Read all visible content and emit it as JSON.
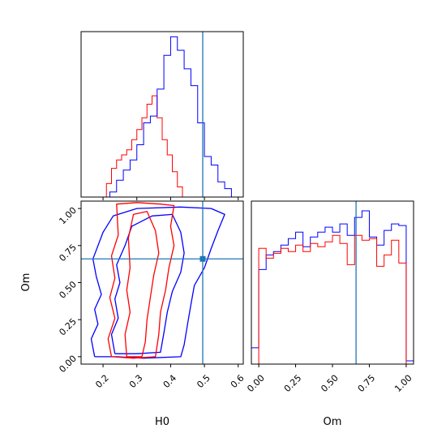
{
  "chart_data": {
    "type": "corner",
    "variables": [
      "H0",
      "Om"
    ],
    "truth": {
      "H0": 0.495,
      "Om": 0.66
    },
    "colors": {
      "red": "#ff0000",
      "blue": "#0000ff",
      "truth": "#1f77b4"
    },
    "grid": false,
    "legend": "none",
    "panels": [
      {
        "id": "h0-marginal",
        "type": "histogram-step",
        "xlim": [
          0.135,
          0.615
        ],
        "x_ticks": [
          0.2,
          0.3,
          0.4,
          0.5,
          0.6
        ],
        "y_ticks_labeled": false,
        "series": [
          {
            "color": "#ff0000",
            "bin_edges": [
              0.195,
              0.21,
              0.225,
              0.24,
              0.255,
              0.27,
              0.285,
              0.3,
              0.315,
              0.33,
              0.345,
              0.36,
              0.375,
              0.39,
              0.405,
              0.42,
              0.435,
              0.45
            ],
            "counts": [
              0.0,
              0.08,
              0.17,
              0.22,
              0.25,
              0.28,
              0.34,
              0.4,
              0.47,
              0.55,
              0.6,
              0.47,
              0.34,
              0.25,
              0.15,
              0.06,
              0.0
            ]
          },
          {
            "color": "#0000ff",
            "bin_edges": [
              0.22,
              0.24,
              0.26,
              0.28,
              0.3,
              0.32,
              0.34,
              0.36,
              0.38,
              0.4,
              0.42,
              0.44,
              0.46,
              0.48,
              0.5,
              0.52,
              0.54,
              0.56,
              0.58,
              0.6
            ],
            "counts": [
              0.03,
              0.1,
              0.16,
              0.22,
              0.31,
              0.44,
              0.48,
              0.64,
              0.84,
              0.95,
              0.87,
              0.76,
              0.66,
              0.44,
              0.24,
              0.19,
              0.09,
              0.05,
              0.0
            ]
          }
        ]
      },
      {
        "id": "h0-om-contours",
        "type": "contour",
        "xlabel": "H0",
        "ylabel": "Om",
        "xlim": [
          0.135,
          0.615
        ],
        "ylim": [
          -0.05,
          1.05
        ],
        "x_ticks": [
          0.2,
          0.3,
          0.4,
          0.5,
          0.6
        ],
        "y_ticks": [
          0.0,
          0.25,
          0.5,
          0.75,
          1.0
        ],
        "series": [
          {
            "color": "#0000ff",
            "contours": [
              [
                [
                  0.175,
                  0.0
                ],
                [
                  0.165,
                  0.12
                ],
                [
                  0.185,
                  0.22
                ],
                [
                  0.175,
                  0.32
                ],
                [
                  0.195,
                  0.42
                ],
                [
                  0.18,
                  0.54
                ],
                [
                  0.17,
                  0.66
                ],
                [
                  0.18,
                  0.72
                ],
                [
                  0.2,
                  0.84
                ],
                [
                  0.23,
                  0.95
                ],
                [
                  0.3,
                  1.0
                ],
                [
                  0.43,
                  1.01
                ],
                [
                  0.52,
                  1.0
                ],
                [
                  0.56,
                  0.96
                ],
                [
                  0.54,
                  0.85
                ],
                [
                  0.52,
                  0.73
                ],
                [
                  0.5,
                  0.6
                ],
                [
                  0.47,
                  0.48
                ],
                [
                  0.46,
                  0.35
                ],
                [
                  0.45,
                  0.22
                ],
                [
                  0.44,
                  0.08
                ],
                [
                  0.43,
                  0.0
                ],
                [
                  0.32,
                  -0.01
                ],
                [
                  0.24,
                  0.0
                ],
                [
                  0.175,
                  0.0
                ]
              ],
              [
                [
                  0.235,
                  0.02
                ],
                [
                  0.225,
                  0.15
                ],
                [
                  0.245,
                  0.26
                ],
                [
                  0.235,
                  0.39
                ],
                [
                  0.25,
                  0.5
                ],
                [
                  0.24,
                  0.62
                ],
                [
                  0.265,
                  0.75
                ],
                [
                  0.285,
                  0.88
                ],
                [
                  0.345,
                  0.95
                ],
                [
                  0.405,
                  0.96
                ],
                [
                  0.43,
                  0.84
                ],
                [
                  0.44,
                  0.7
                ],
                [
                  0.43,
                  0.57
                ],
                [
                  0.405,
                  0.44
                ],
                [
                  0.39,
                  0.3
                ],
                [
                  0.38,
                  0.16
                ],
                [
                  0.37,
                  0.03
                ],
                [
                  0.3,
                  0.02
                ],
                [
                  0.235,
                  0.02
                ]
              ]
            ]
          },
          {
            "color": "#ff0000",
            "contours": [
              [
                [
                  0.225,
                  0.0
                ],
                [
                  0.215,
                  0.12
                ],
                [
                  0.235,
                  0.26
                ],
                [
                  0.22,
                  0.4
                ],
                [
                  0.235,
                  0.53
                ],
                [
                  0.225,
                  0.68
                ],
                [
                  0.245,
                  0.82
                ],
                [
                  0.24,
                  1.03
                ],
                [
                  0.3,
                  1.04
                ],
                [
                  0.37,
                  1.03
                ],
                [
                  0.41,
                  1.02
                ],
                [
                  0.4,
                  0.88
                ],
                [
                  0.41,
                  0.75
                ],
                [
                  0.395,
                  0.6
                ],
                [
                  0.385,
                  0.45
                ],
                [
                  0.37,
                  0.3
                ],
                [
                  0.365,
                  0.15
                ],
                [
                  0.355,
                  0.0
                ],
                [
                  0.29,
                  -0.01
                ],
                [
                  0.225,
                  0.0
                ]
              ],
              [
                [
                  0.27,
                  0.0
                ],
                [
                  0.265,
                  0.15
                ],
                [
                  0.28,
                  0.3
                ],
                [
                  0.27,
                  0.45
                ],
                [
                  0.28,
                  0.6
                ],
                [
                  0.275,
                  0.8
                ],
                [
                  0.29,
                  0.96
                ],
                [
                  0.33,
                  0.98
                ],
                [
                  0.355,
                  0.85
                ],
                [
                  0.365,
                  0.7
                ],
                [
                  0.35,
                  0.55
                ],
                [
                  0.34,
                  0.4
                ],
                [
                  0.33,
                  0.25
                ],
                [
                  0.325,
                  0.1
                ],
                [
                  0.315,
                  0.0
                ],
                [
                  0.27,
                  0.0
                ]
              ]
            ]
          }
        ]
      },
      {
        "id": "om-marginal",
        "type": "histogram-step",
        "xlabel": "Om",
        "xlim": [
          -0.05,
          1.05
        ],
        "x_ticks": [
          0.0,
          0.25,
          0.5,
          0.75,
          1.0
        ],
        "x_tick_labels": [
          "0.00",
          "0.25",
          "0.50",
          "0.75",
          "1.00"
        ],
        "y_ticks_labeled": false,
        "series": [
          {
            "color": "#0000ff",
            "bin_edges": [
              -0.05,
              0.0,
              0.05,
              0.1,
              0.15,
              0.2,
              0.25,
              0.3,
              0.35,
              0.4,
              0.45,
              0.5,
              0.55,
              0.6,
              0.65,
              0.7,
              0.75,
              0.8,
              0.85,
              0.9,
              0.95,
              1.0,
              1.05
            ],
            "counts": [
              0.1,
              0.58,
              0.67,
              0.69,
              0.73,
              0.77,
              0.81,
              0.72,
              0.78,
              0.81,
              0.84,
              0.81,
              0.86,
              0.79,
              0.9,
              0.94,
              0.78,
              0.73,
              0.82,
              0.86,
              0.85,
              0.02
            ]
          },
          {
            "color": "#ff0000",
            "bin_edges": [
              -0.05,
              0.0,
              0.05,
              0.1,
              0.15,
              0.2,
              0.25,
              0.3,
              0.35,
              0.4,
              0.45,
              0.5,
              0.55,
              0.6,
              0.65,
              0.7,
              0.75,
              0.8,
              0.85,
              0.9,
              0.95,
              1.0,
              1.05
            ],
            "counts": [
              0.0,
              0.71,
              0.65,
              0.68,
              0.71,
              0.69,
              0.73,
              0.69,
              0.74,
              0.72,
              0.75,
              0.79,
              0.74,
              0.61,
              0.79,
              0.76,
              0.77,
              0.6,
              0.67,
              0.76,
              0.62,
              0.0
            ]
          }
        ]
      }
    ]
  }
}
